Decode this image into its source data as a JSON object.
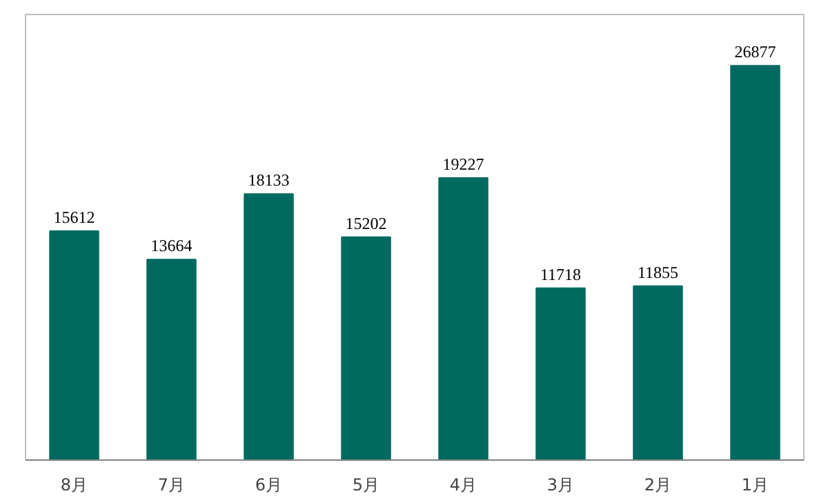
{
  "chart_data": {
    "type": "bar",
    "categories": [
      "8月",
      "7月",
      "6月",
      "5月",
      "4月",
      "3月",
      "2月",
      "1月"
    ],
    "values": [
      15612,
      13664,
      18133,
      15202,
      19227,
      11718,
      11855,
      26877
    ],
    "color": "#006a60",
    "data_labels": true
  }
}
